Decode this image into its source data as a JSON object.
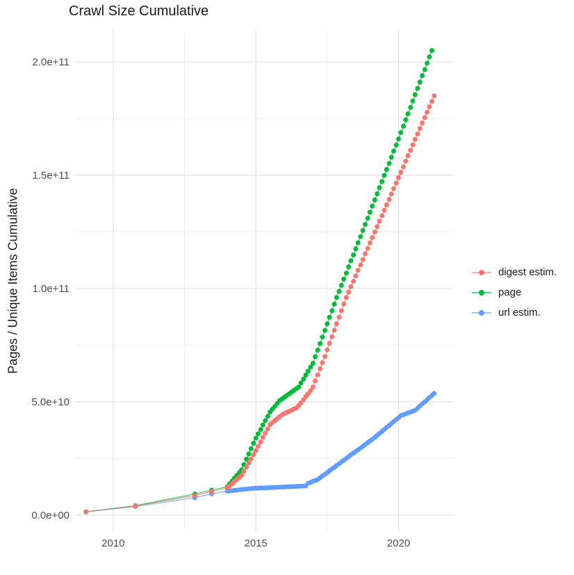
{
  "header": {
    "title": "Crawl Size Cumulative"
  },
  "chart_data": {
    "type": "line",
    "title": "Crawl Size Cumulative",
    "xlabel": "",
    "ylabel": "Pages / Unique Items Cumulative",
    "value_unit": "1e9",
    "xlim": [
      2008.64,
      2021.96
    ],
    "ylim_e9": [
      -7.4,
      214.4
    ],
    "x_ticks": [
      2010,
      2015,
      2020
    ],
    "x_tick_labels": [
      "2010",
      "2015",
      "2020"
    ],
    "x_minor_ticks": [
      2012.5,
      2017.5
    ],
    "y_ticks_e9": [
      0,
      50,
      100,
      150,
      200
    ],
    "y_tick_labels": [
      "0.0e+00",
      "5.0e+10",
      "1.0e+11",
      "1.5e+11",
      "2.0e+11"
    ],
    "y_minor_ticks_e9": [
      25,
      75,
      125,
      175
    ],
    "grid": true,
    "legend_position": "right",
    "colors": {
      "digest": "#F8766D",
      "page": "#00BA38",
      "url": "#619CFF"
    },
    "series": [
      {
        "name": "digest estim.",
        "color": "#F8766D",
        "points": [
          [
            2009.05,
            1.5
          ],
          [
            2010.78,
            4.0
          ],
          [
            2012.86,
            8.6
          ],
          [
            2013.45,
            10.4
          ],
          [
            2014.0,
            12.0
          ],
          [
            2014.08,
            12.9
          ],
          [
            2014.17,
            13.8
          ],
          [
            2014.25,
            14.8
          ],
          [
            2014.33,
            15.7
          ],
          [
            2014.42,
            16.6
          ],
          [
            2014.5,
            17.5
          ],
          [
            2014.58,
            19.3
          ],
          [
            2014.67,
            21.2
          ],
          [
            2014.75,
            23.0
          ],
          [
            2014.83,
            24.8
          ],
          [
            2014.92,
            26.7
          ],
          [
            2015.0,
            28.5
          ],
          [
            2015.08,
            30.4
          ],
          [
            2015.17,
            32.3
          ],
          [
            2015.25,
            34.3
          ],
          [
            2015.33,
            36.2
          ],
          [
            2015.42,
            38.1
          ],
          [
            2015.5,
            40.0
          ],
          [
            2015.58,
            40.9
          ],
          [
            2015.67,
            41.7
          ],
          [
            2015.75,
            42.6
          ],
          [
            2015.83,
            43.4
          ],
          [
            2015.92,
            44.3
          ],
          [
            2016.0,
            44.8
          ],
          [
            2016.08,
            45.3
          ],
          [
            2016.17,
            45.8
          ],
          [
            2016.25,
            46.3
          ],
          [
            2016.33,
            46.8
          ],
          [
            2016.42,
            47.3
          ],
          [
            2016.5,
            48.3
          ],
          [
            2016.58,
            49.6
          ],
          [
            2016.67,
            50.9
          ],
          [
            2016.75,
            52.3
          ],
          [
            2016.83,
            53.6
          ],
          [
            2016.92,
            54.9
          ],
          [
            2017.0,
            56.5
          ],
          [
            2017.08,
            59.2
          ],
          [
            2017.17,
            61.9
          ],
          [
            2017.25,
            64.6
          ],
          [
            2017.33,
            67.3
          ],
          [
            2017.42,
            70.0
          ],
          [
            2017.5,
            72.9
          ],
          [
            2017.58,
            75.8
          ],
          [
            2017.67,
            78.7
          ],
          [
            2017.75,
            81.6
          ],
          [
            2017.83,
            84.4
          ],
          [
            2017.92,
            87.3
          ],
          [
            2018.0,
            90.2
          ],
          [
            2018.08,
            93.1
          ],
          [
            2018.17,
            96.0
          ],
          [
            2018.25,
            98.4
          ],
          [
            2018.33,
            100.8
          ],
          [
            2018.42,
            103.2
          ],
          [
            2018.5,
            105.6
          ],
          [
            2018.58,
            108.0
          ],
          [
            2018.67,
            110.4
          ],
          [
            2018.75,
            112.8
          ],
          [
            2018.83,
            115.3
          ],
          [
            2018.92,
            117.7
          ],
          [
            2019.0,
            120.1
          ],
          [
            2019.08,
            122.5
          ],
          [
            2019.17,
            124.9
          ],
          [
            2019.25,
            127.3
          ],
          [
            2019.33,
            129.7
          ],
          [
            2019.42,
            132.1
          ],
          [
            2019.5,
            134.5
          ],
          [
            2019.58,
            136.9
          ],
          [
            2019.67,
            139.3
          ],
          [
            2019.75,
            141.7
          ],
          [
            2019.83,
            144.1
          ],
          [
            2019.92,
            146.5
          ],
          [
            2020.0,
            148.9
          ],
          [
            2020.08,
            151.3
          ],
          [
            2020.17,
            153.7
          ],
          [
            2020.25,
            156.2
          ],
          [
            2020.33,
            158.6
          ],
          [
            2020.42,
            161.0
          ],
          [
            2020.5,
            163.4
          ],
          [
            2020.58,
            165.8
          ],
          [
            2020.67,
            168.2
          ],
          [
            2020.75,
            170.6
          ],
          [
            2020.83,
            173.0
          ],
          [
            2020.92,
            175.4
          ],
          [
            2021.0,
            177.8
          ],
          [
            2021.08,
            180.2
          ],
          [
            2021.17,
            182.6
          ],
          [
            2021.25,
            185.0
          ]
        ]
      },
      {
        "name": "page",
        "color": "#00BA38",
        "points": [
          [
            2009.05,
            1.5
          ],
          [
            2010.78,
            4.2
          ],
          [
            2012.86,
            9.3
          ],
          [
            2013.45,
            11.0
          ],
          [
            2014.0,
            12.5
          ],
          [
            2014.08,
            13.8
          ],
          [
            2014.17,
            15.0
          ],
          [
            2014.25,
            16.3
          ],
          [
            2014.33,
            17.5
          ],
          [
            2014.42,
            18.8
          ],
          [
            2014.5,
            20.0
          ],
          [
            2014.58,
            22.3
          ],
          [
            2014.67,
            24.7
          ],
          [
            2014.75,
            27.0
          ],
          [
            2014.83,
            29.3
          ],
          [
            2014.92,
            31.7
          ],
          [
            2015.0,
            34.0
          ],
          [
            2015.08,
            35.9
          ],
          [
            2015.17,
            37.8
          ],
          [
            2015.25,
            39.8
          ],
          [
            2015.33,
            41.7
          ],
          [
            2015.42,
            43.6
          ],
          [
            2015.5,
            45.5
          ],
          [
            2015.58,
            46.8
          ],
          [
            2015.67,
            48.0
          ],
          [
            2015.75,
            49.3
          ],
          [
            2015.83,
            50.5
          ],
          [
            2015.92,
            51.3
          ],
          [
            2016.0,
            52.0
          ],
          [
            2016.08,
            52.8
          ],
          [
            2016.17,
            53.5
          ],
          [
            2016.25,
            54.3
          ],
          [
            2016.33,
            55.0
          ],
          [
            2016.42,
            55.8
          ],
          [
            2016.5,
            56.5
          ],
          [
            2016.58,
            58.3
          ],
          [
            2016.67,
            60.0
          ],
          [
            2016.75,
            61.8
          ],
          [
            2016.83,
            63.5
          ],
          [
            2016.92,
            65.3
          ],
          [
            2017.0,
            67.0
          ],
          [
            2017.08,
            69.9
          ],
          [
            2017.17,
            72.8
          ],
          [
            2017.25,
            75.7
          ],
          [
            2017.33,
            78.6
          ],
          [
            2017.42,
            81.5
          ],
          [
            2017.5,
            84.4
          ],
          [
            2017.58,
            87.3
          ],
          [
            2017.67,
            90.2
          ],
          [
            2017.75,
            93.1
          ],
          [
            2017.83,
            96.0
          ],
          [
            2017.92,
            98.7
          ],
          [
            2018.0,
            101.4
          ],
          [
            2018.08,
            104.1
          ],
          [
            2018.17,
            106.8
          ],
          [
            2018.25,
            109.5
          ],
          [
            2018.33,
            112.2
          ],
          [
            2018.42,
            114.8
          ],
          [
            2018.5,
            117.5
          ],
          [
            2018.58,
            120.2
          ],
          [
            2018.67,
            122.9
          ],
          [
            2018.75,
            125.6
          ],
          [
            2018.83,
            128.3
          ],
          [
            2018.92,
            131.0
          ],
          [
            2019.0,
            133.7
          ],
          [
            2019.08,
            136.4
          ],
          [
            2019.17,
            139.1
          ],
          [
            2019.25,
            141.8
          ],
          [
            2019.33,
            144.5
          ],
          [
            2019.42,
            147.2
          ],
          [
            2019.5,
            149.9
          ],
          [
            2019.58,
            152.5
          ],
          [
            2019.67,
            155.2
          ],
          [
            2019.75,
            157.9
          ],
          [
            2019.83,
            160.6
          ],
          [
            2019.92,
            163.3
          ],
          [
            2020.0,
            166.0
          ],
          [
            2020.08,
            168.8
          ],
          [
            2020.17,
            171.6
          ],
          [
            2020.25,
            174.4
          ],
          [
            2020.33,
            177.1
          ],
          [
            2020.42,
            179.9
          ],
          [
            2020.5,
            182.7
          ],
          [
            2020.58,
            185.5
          ],
          [
            2020.67,
            188.3
          ],
          [
            2020.75,
            191.1
          ],
          [
            2020.83,
            193.9
          ],
          [
            2020.92,
            196.6
          ],
          [
            2021.0,
            199.4
          ],
          [
            2021.08,
            202.2
          ],
          [
            2021.17,
            205.0
          ]
        ]
      },
      {
        "name": "url estim.",
        "color": "#619CFF",
        "points": [
          [
            2009.05,
            1.4
          ],
          [
            2010.78,
            3.8
          ],
          [
            2012.86,
            7.7
          ],
          [
            2013.45,
            9.4
          ],
          [
            2014.0,
            10.6
          ],
          [
            2014.08,
            10.7
          ],
          [
            2014.17,
            10.8
          ],
          [
            2014.25,
            10.9
          ],
          [
            2014.33,
            11.0
          ],
          [
            2014.42,
            11.2
          ],
          [
            2014.5,
            11.3
          ],
          [
            2014.58,
            11.4
          ],
          [
            2014.67,
            11.5
          ],
          [
            2014.75,
            11.6
          ],
          [
            2014.83,
            11.7
          ],
          [
            2014.92,
            11.8
          ],
          [
            2015.0,
            11.9
          ],
          [
            2015.08,
            11.9
          ],
          [
            2015.17,
            12.0
          ],
          [
            2015.25,
            12.0
          ],
          [
            2015.33,
            12.0
          ],
          [
            2015.42,
            12.1
          ],
          [
            2015.5,
            12.1
          ],
          [
            2015.58,
            12.2
          ],
          [
            2015.67,
            12.2
          ],
          [
            2015.75,
            12.3
          ],
          [
            2015.83,
            12.3
          ],
          [
            2015.92,
            12.4
          ],
          [
            2016.0,
            12.4
          ],
          [
            2016.08,
            12.5
          ],
          [
            2016.17,
            12.5
          ],
          [
            2016.25,
            12.6
          ],
          [
            2016.33,
            12.6
          ],
          [
            2016.42,
            12.7
          ],
          [
            2016.5,
            12.7
          ],
          [
            2016.58,
            12.8
          ],
          [
            2016.67,
            12.8
          ],
          [
            2016.75,
            12.9
          ],
          [
            2016.83,
            14.0
          ],
          [
            2016.92,
            14.5
          ],
          [
            2017.0,
            14.9
          ],
          [
            2017.08,
            15.3
          ],
          [
            2017.17,
            15.7
          ],
          [
            2017.25,
            16.5
          ],
          [
            2017.33,
            17.3
          ],
          [
            2017.42,
            18.0
          ],
          [
            2017.5,
            18.8
          ],
          [
            2017.58,
            19.6
          ],
          [
            2017.67,
            20.4
          ],
          [
            2017.75,
            21.1
          ],
          [
            2017.83,
            21.9
          ],
          [
            2017.92,
            22.7
          ],
          [
            2018.0,
            23.5
          ],
          [
            2018.08,
            24.2
          ],
          [
            2018.17,
            25.0
          ],
          [
            2018.25,
            25.8
          ],
          [
            2018.33,
            26.6
          ],
          [
            2018.42,
            27.3
          ],
          [
            2018.5,
            28.1
          ],
          [
            2018.58,
            28.9
          ],
          [
            2018.67,
            29.6
          ],
          [
            2018.75,
            30.4
          ],
          [
            2018.83,
            31.2
          ],
          [
            2018.92,
            32.0
          ],
          [
            2019.0,
            32.7
          ],
          [
            2019.08,
            33.5
          ],
          [
            2019.17,
            34.3
          ],
          [
            2019.25,
            35.2
          ],
          [
            2019.33,
            36.0
          ],
          [
            2019.42,
            36.9
          ],
          [
            2019.5,
            37.8
          ],
          [
            2019.58,
            38.7
          ],
          [
            2019.67,
            39.5
          ],
          [
            2019.75,
            40.4
          ],
          [
            2019.83,
            41.3
          ],
          [
            2019.92,
            42.2
          ],
          [
            2020.0,
            43.0
          ],
          [
            2020.08,
            43.9
          ],
          [
            2020.17,
            44.3
          ],
          [
            2020.25,
            44.7
          ],
          [
            2020.33,
            45.1
          ],
          [
            2020.42,
            45.5
          ],
          [
            2020.5,
            45.9
          ],
          [
            2020.58,
            46.3
          ],
          [
            2020.67,
            47.2
          ],
          [
            2020.75,
            48.2
          ],
          [
            2020.83,
            49.1
          ],
          [
            2020.92,
            50.0
          ],
          [
            2021.0,
            50.9
          ],
          [
            2021.08,
            51.9
          ],
          [
            2021.17,
            52.8
          ],
          [
            2021.25,
            53.7
          ]
        ]
      }
    ]
  }
}
